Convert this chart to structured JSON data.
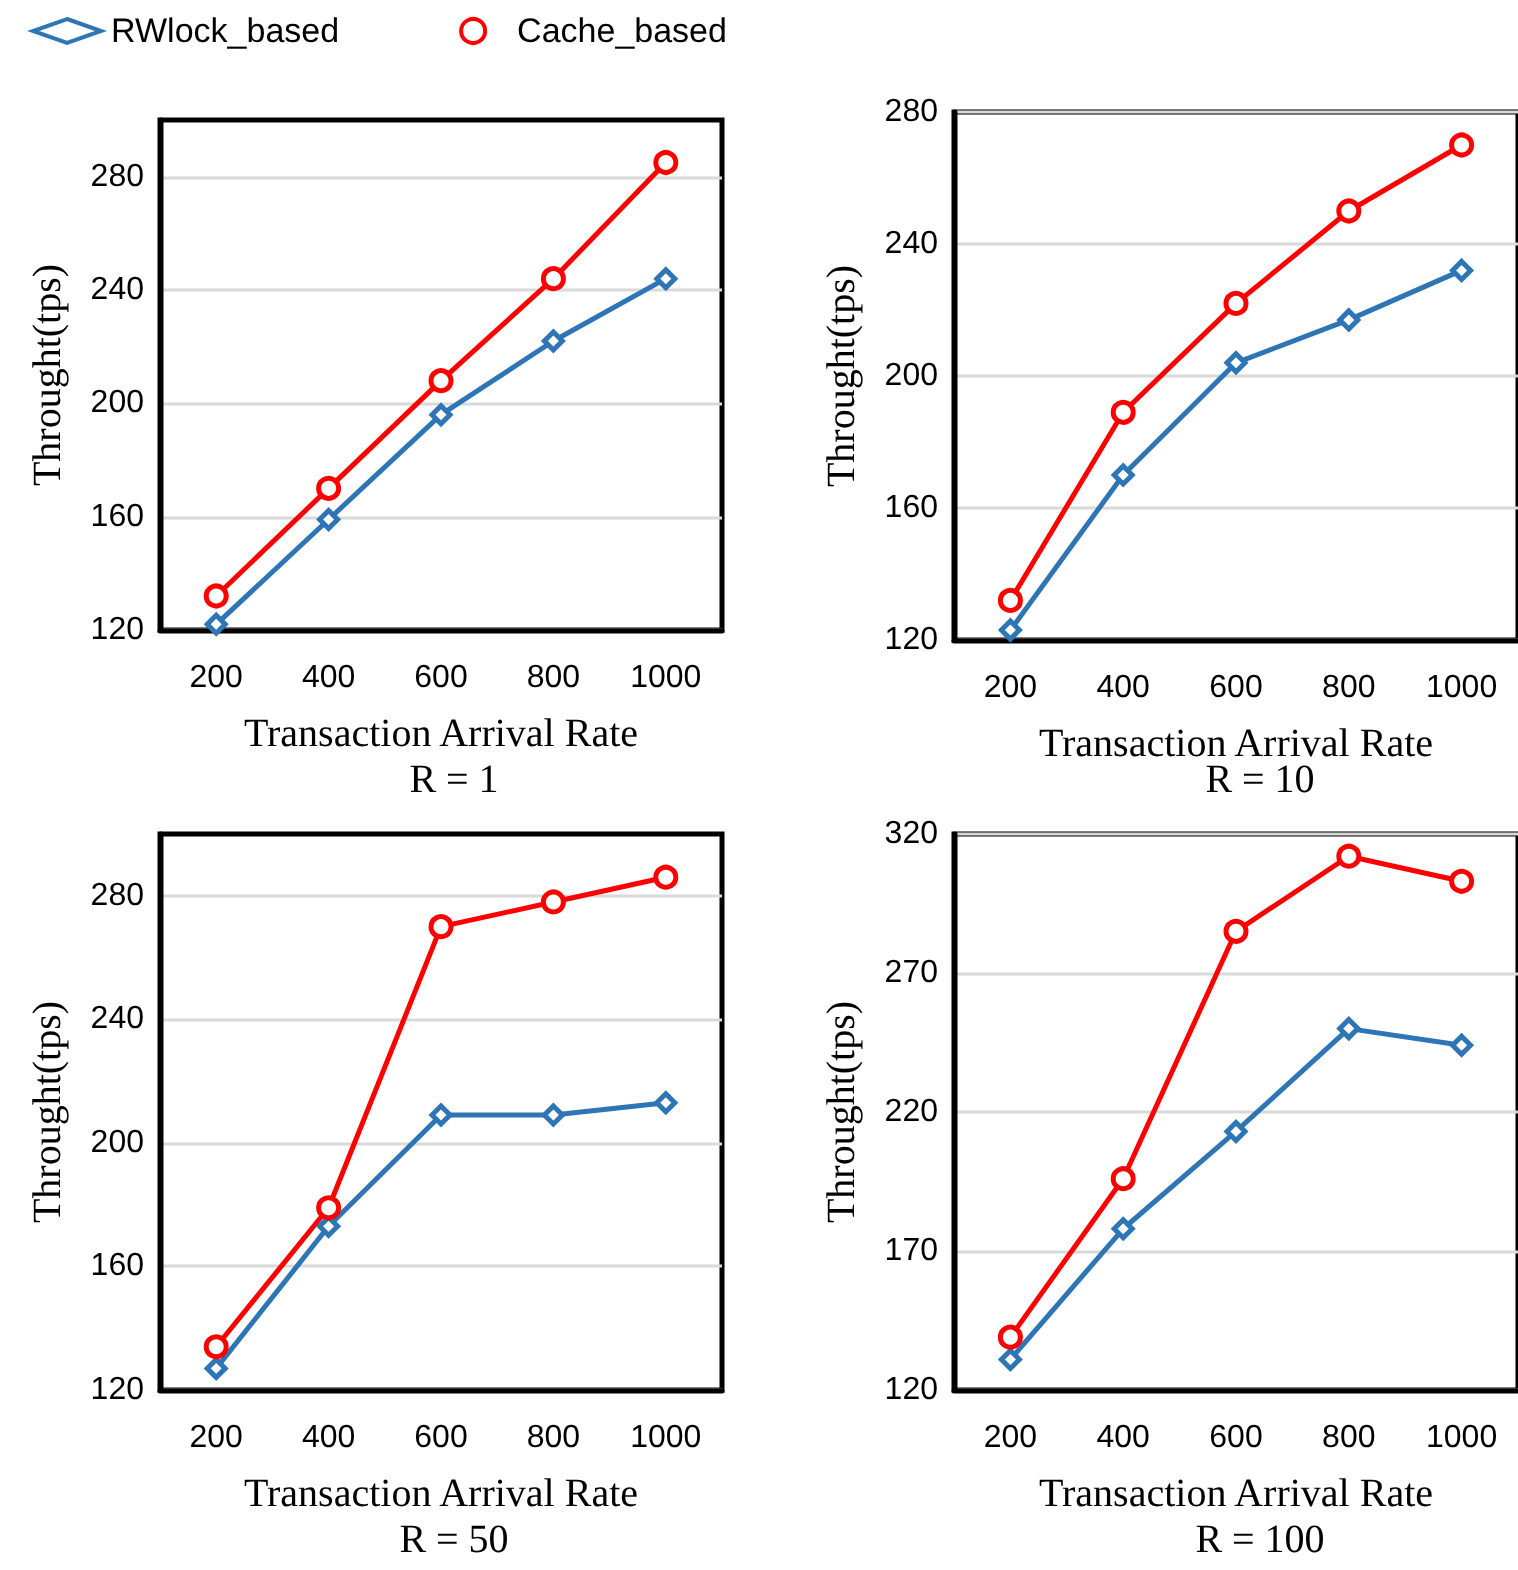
{
  "chart_data": [
    {
      "type": "line",
      "title": "R = 1",
      "xlabel": "Transaction Arrival Rate",
      "ylabel": "Throught(tps)",
      "categories": [
        "200",
        "400",
        "600",
        "800",
        "1000"
      ],
      "ylim": [
        120,
        300
      ],
      "yticks": [
        120,
        160,
        200,
        240,
        280
      ],
      "grid": "y",
      "legend": "top",
      "series": [
        {
          "name": "RWlock_based",
          "color": "#2e75b6",
          "marker": "diamond",
          "values": [
            122,
            159,
            196,
            222,
            244
          ]
        },
        {
          "name": "Cache_based",
          "color": "#ff0000",
          "marker": "circle",
          "values": [
            132,
            170,
            208,
            244,
            285
          ]
        }
      ]
    },
    {
      "type": "line",
      "title": "R = 10",
      "xlabel": "Transaction Arrival Rate",
      "ylabel": "Throught(tps)",
      "categories": [
        "200",
        "400",
        "600",
        "800",
        "1000"
      ],
      "ylim": [
        120,
        280
      ],
      "yticks": [
        120,
        160,
        200,
        240,
        280
      ],
      "grid": "y",
      "series": [
        {
          "color": "#2e75b6",
          "marker": "diamond",
          "values": [
            123,
            170,
            204,
            217,
            232
          ]
        },
        {
          "color": "#ff0000",
          "marker": "circle",
          "values": [
            132,
            189,
            222,
            250,
            270
          ]
        }
      ]
    },
    {
      "type": "line",
      "title": "R = 50",
      "xlabel": "Transaction Arrival Rate",
      "ylabel": "Throught(tps)",
      "categories": [
        "200",
        "400",
        "600",
        "800",
        "1000"
      ],
      "ylim": [
        120,
        300
      ],
      "yticks": [
        120,
        160,
        200,
        240,
        280
      ],
      "grid": "y",
      "series": [
        {
          "color": "#2e75b6",
          "marker": "diamond",
          "values": [
            127,
            173,
            209,
            209,
            213
          ]
        },
        {
          "color": "#ff0000",
          "marker": "circle",
          "values": [
            134,
            179,
            270,
            278,
            286
          ]
        }
      ]
    },
    {
      "type": "line",
      "title": "R = 100",
      "xlabel": "Transaction Arrival Rate",
      "ylabel": "Throught(tps)",
      "categories": [
        "200",
        "400",
        "600",
        "800",
        "1000"
      ],
      "ylim": [
        120,
        320
      ],
      "yticks": [
        120,
        170,
        220,
        270,
        320
      ],
      "grid": "y",
      "series": [
        {
          "color": "#2e75b6",
          "marker": "diamond",
          "values": [
            131,
            178,
            213,
            250,
            244
          ]
        },
        {
          "color": "#ff0000",
          "marker": "circle",
          "values": [
            139,
            196,
            285,
            312,
            303
          ]
        }
      ]
    }
  ]
}
